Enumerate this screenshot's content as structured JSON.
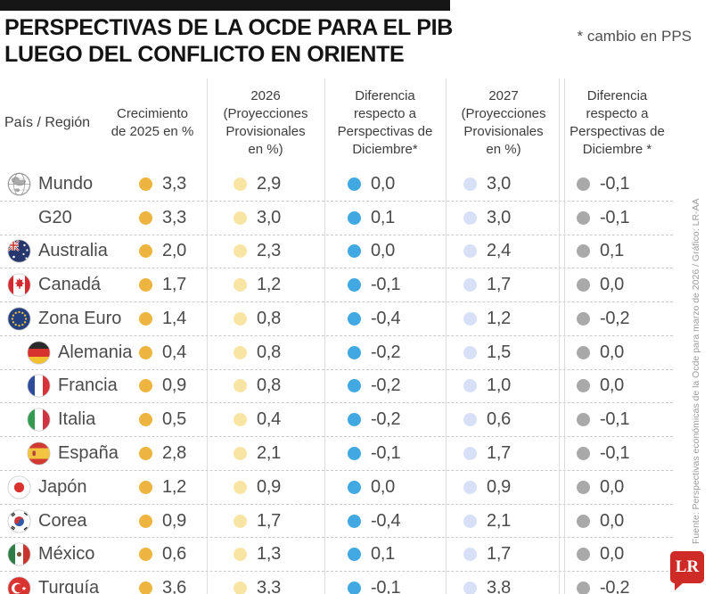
{
  "header": {
    "title_line1": "PERSPECTIVAS DE LA OCDE PARA EL PIB",
    "title_line2": "LUEGO DEL CONFLICTO EN ORIENTE",
    "note": "* cambio en PPS"
  },
  "columns": {
    "region": "País / Región",
    "growth2025": "Crecimiento\nde 2025 en %",
    "proj2026": "2026\n(Proyecciones\nProvisionales\nen %)",
    "diff2026": "Diferencia\nrespecto a\nPerspectivas de\nDiciembre*",
    "proj2027": "2027\n(Proyecciones\nProvisionales\nen %)",
    "diff2027": "Diferencia\nrespecto a\nPerspectivas de\nDiciembre *"
  },
  "colors": {
    "dot2025": "#EEB440",
    "dot2026": "#F8E5A3",
    "dotDiff2026": "#41A8E1",
    "dot2027": "#D7E0F6",
    "dotDiff2027": "#A9A9A9",
    "logo_red": "#CE2B26"
  },
  "rows": [
    {
      "flag": "globe",
      "name": "Mundo",
      "indent": false,
      "growth2025": "3,3",
      "proj2026": "2,9",
      "diff2026": "0,0",
      "proj2027": "3,0",
      "diff2027": "-0,1"
    },
    {
      "flag": null,
      "name": "G20",
      "indent": false,
      "growth2025": "3,3",
      "proj2026": "3,0",
      "diff2026": "0,1",
      "proj2027": "3,0",
      "diff2027": "-0,1"
    },
    {
      "flag": "australia",
      "name": "Australia",
      "indent": false,
      "growth2025": "2,0",
      "proj2026": "2,3",
      "diff2026": "0,0",
      "proj2027": "2,4",
      "diff2027": "0,1"
    },
    {
      "flag": "canada",
      "name": "Canadá",
      "indent": false,
      "growth2025": "1,7",
      "proj2026": "1,2",
      "diff2026": "-0,1",
      "proj2027": "1,7",
      "diff2027": "0,0"
    },
    {
      "flag": "eu",
      "name": "Zona Euro",
      "indent": false,
      "growth2025": "1,4",
      "proj2026": "0,8",
      "diff2026": "-0,4",
      "proj2027": "1,2",
      "diff2027": "-0,2"
    },
    {
      "flag": "germany",
      "name": "Alemania",
      "indent": true,
      "growth2025": "0,4",
      "proj2026": "0,8",
      "diff2026": "-0,2",
      "proj2027": "1,5",
      "diff2027": "0,0"
    },
    {
      "flag": "france",
      "name": "Francia",
      "indent": true,
      "growth2025": "0,9",
      "proj2026": "0,8",
      "diff2026": "-0,2",
      "proj2027": "1,0",
      "diff2027": "0,0"
    },
    {
      "flag": "italy",
      "name": "Italia",
      "indent": true,
      "growth2025": "0,5",
      "proj2026": "0,4",
      "diff2026": "-0,2",
      "proj2027": "0,6",
      "diff2027": "-0,1"
    },
    {
      "flag": "spain",
      "name": "España",
      "indent": true,
      "growth2025": "2,8",
      "proj2026": "2,1",
      "diff2026": "-0,1",
      "proj2027": "1,7",
      "diff2027": "-0,1"
    },
    {
      "flag": "japan",
      "name": "Japón",
      "indent": false,
      "growth2025": "1,2",
      "proj2026": "0,9",
      "diff2026": "0,0",
      "proj2027": "0,9",
      "diff2027": "0,0"
    },
    {
      "flag": "korea",
      "name": "Corea",
      "indent": false,
      "growth2025": "0,9",
      "proj2026": "1,7",
      "diff2026": "-0,4",
      "proj2027": "2,1",
      "diff2027": "0,0"
    },
    {
      "flag": "mexico",
      "name": "México",
      "indent": false,
      "growth2025": "0,6",
      "proj2026": "1,3",
      "diff2026": "0,1",
      "proj2027": "1,7",
      "diff2027": "0,0"
    },
    {
      "flag": "turkey",
      "name": "Turquía",
      "indent": false,
      "growth2025": "3,6",
      "proj2026": "3,3",
      "diff2026": "-0,1",
      "proj2027": "3,8",
      "diff2027": "-0,2"
    }
  ],
  "footer": {
    "source": "Fuente: Perspectivas económicas de la Ocde para marzo de 2026 / Gráfico: LR-AA",
    "logo_text": "LR"
  },
  "chart_data": {
    "type": "table",
    "title": "PERSPECTIVAS DE LA OCDE PARA EL PIB LUEGO DEL CONFLICTO EN ORIENTE",
    "note": "* cambio en PPS",
    "columns": [
      "País / Región",
      "Crecimiento de 2025 en %",
      "2026 (Proyecciones Provisionales en %)",
      "Diferencia respecto a Perspectivas de Diciembre*",
      "2027 (Proyecciones Provisionales en %)",
      "Diferencia respecto a Perspectivas de Diciembre *"
    ],
    "rows": [
      [
        "Mundo",
        3.3,
        2.9,
        0.0,
        3.0,
        -0.1
      ],
      [
        "G20",
        3.3,
        3.0,
        0.1,
        3.0,
        -0.1
      ],
      [
        "Australia",
        2.0,
        2.3,
        0.0,
        2.4,
        0.1
      ],
      [
        "Canadá",
        1.7,
        1.2,
        -0.1,
        1.7,
        0.0
      ],
      [
        "Zona Euro",
        1.4,
        0.8,
        -0.4,
        1.2,
        -0.2
      ],
      [
        "Alemania",
        0.4,
        0.8,
        -0.2,
        1.5,
        0.0
      ],
      [
        "Francia",
        0.9,
        0.8,
        -0.2,
        1.0,
        0.0
      ],
      [
        "Italia",
        0.5,
        0.4,
        -0.2,
        0.6,
        -0.1
      ],
      [
        "España",
        2.8,
        2.1,
        -0.1,
        1.7,
        -0.1
      ],
      [
        "Japón",
        1.2,
        0.9,
        0.0,
        0.9,
        0.0
      ],
      [
        "Corea",
        0.9,
        1.7,
        -0.4,
        2.1,
        0.0
      ],
      [
        "México",
        0.6,
        1.3,
        0.1,
        1.7,
        0.0
      ],
      [
        "Turquía",
        3.6,
        3.3,
        -0.1,
        3.8,
        -0.2
      ]
    ],
    "source": "Fuente: Perspectivas económicas de la Ocde para marzo de 2026 / Gráfico: LR-AA"
  }
}
